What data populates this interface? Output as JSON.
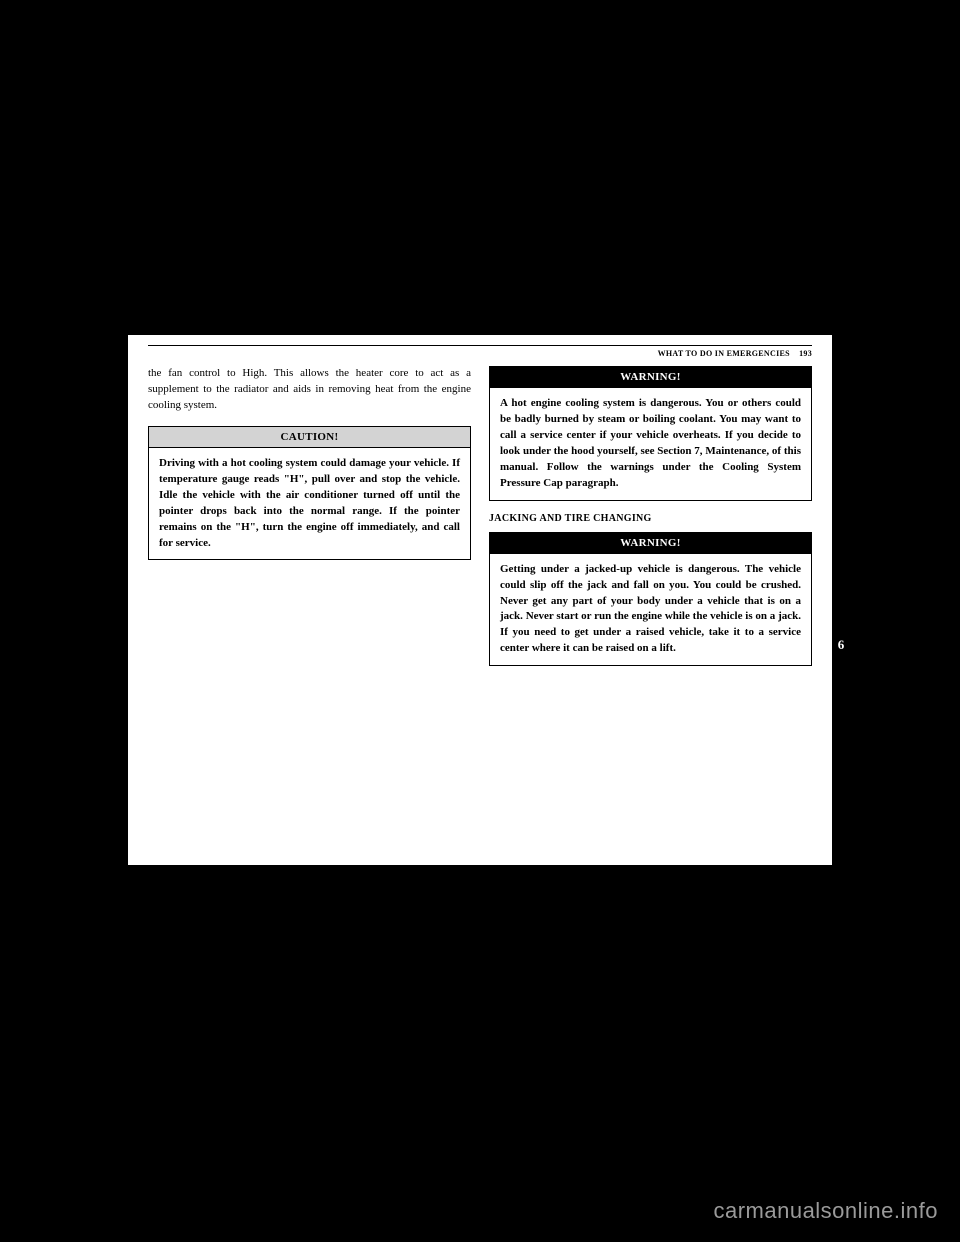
{
  "header": {
    "section_title": "WHAT TO DO IN EMERGENCIES",
    "page_number": "193"
  },
  "left_column": {
    "intro_text": "the fan control to High. This allows the heater core to act as a supplement to the radiator and aids in removing heat from the engine cooling system.",
    "caution": {
      "title": "CAUTION!",
      "body": "Driving with a hot cooling system could damage your vehicle. If temperature gauge reads \"H\", pull over and stop the vehicle. Idle the vehicle with the air conditioner turned off until the pointer drops back into the normal range. If the pointer remains on the \"H\", turn the engine off immediately, and call for service."
    }
  },
  "right_column": {
    "warning1": {
      "title": "WARNING!",
      "body": "A hot engine cooling system is dangerous. You or others could be badly burned by steam or boiling coolant. You may want to call a service center if your vehicle overheats. If you decide to look under the hood yourself, see Section 7, Maintenance, of this manual. Follow the warnings under the Cooling System Pressure Cap paragraph."
    },
    "section_heading": "JACKING AND TIRE CHANGING",
    "warning2": {
      "title": "WARNING!",
      "body": "Getting under a jacked-up vehicle is dangerous. The vehicle could slip off the jack and fall on you. You could be crushed. Never get any part of your body under a vehicle that is on a jack. Never start or run the engine while the vehicle is on a jack. If you need to get under a raised vehicle, take it to a service center where it can be raised on a lift."
    }
  },
  "tab_number": "6",
  "watermark": "carmanualsonline.info"
}
